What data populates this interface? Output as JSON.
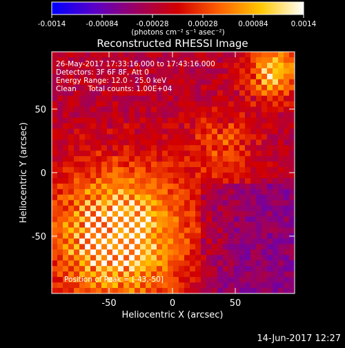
{
  "colorbar": {
    "tick_labels": [
      "-0.0014",
      "-0.00084",
      "-0.00028",
      "0.00028",
      "0.00084",
      "0.0014"
    ],
    "range": [
      -0.0014,
      0.0014
    ],
    "unit_label": "(photons cm⁻² s⁻¹ asec⁻²)",
    "colormap": [
      "#0000ff",
      "#5a00c8",
      "#9a0064",
      "#d20000",
      "#ff6400",
      "#ffc800",
      "#ffffff"
    ]
  },
  "chart_data": {
    "type": "heatmap",
    "title": "Reconstructed RHESSI Image",
    "xlabel": "Heliocentric X (arcsec)",
    "ylabel": "Heliocentric Y (arcsec)",
    "xlim": [
      -96,
      96
    ],
    "ylim": [
      -96,
      96
    ],
    "x_ticks": [
      "-50",
      "0",
      "50"
    ],
    "y_ticks": [
      "-50",
      "0",
      "50"
    ],
    "peak": [
      -43,
      -50
    ],
    "annotations": [
      "26-May-2017 17:33:16.000 to 17:43:16.000",
      "Detectors: 3F 6F 8F, Att 0",
      "Energy Range: 12.0 - 25.0 keV",
      "Clean     Total counts: 1.00E+04"
    ],
    "peak_label": "Position of Peak = [-43,-50]"
  },
  "timestamp": "14-Jun-2017 12:27"
}
